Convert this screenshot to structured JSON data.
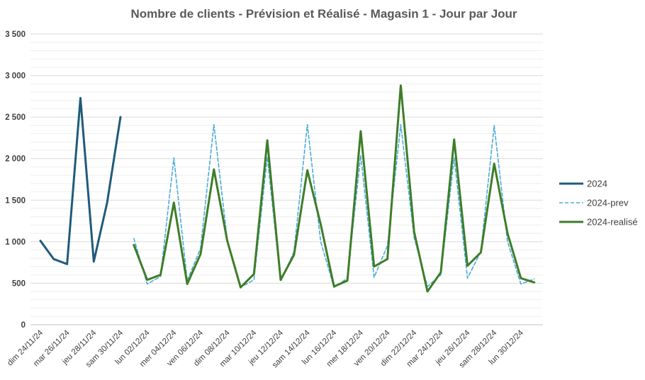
{
  "chart_data": {
    "type": "line",
    "title": "Nombre de clients - Prévision et Réalisé - Magasin 1 - Jour par Jour",
    "xlabel": "",
    "ylabel": "",
    "ylim": [
      0,
      3500
    ],
    "yticks": [
      0,
      500,
      1000,
      1500,
      2000,
      2500,
      3000,
      3500
    ],
    "ytick_labels": [
      "0",
      "500",
      "1 000",
      "1 500",
      "2 000",
      "2 500",
      "3 000",
      "3 500"
    ],
    "grid": true,
    "legend_position": "right",
    "categories": [
      "dim 24/11/24",
      "lun 25/11/24",
      "mar 26/11/24",
      "mer 27/11/24",
      "jeu 28/11/24",
      "ven 29/11/24",
      "sam 30/11/24",
      "dim 01/12/24",
      "lun 02/12/24",
      "mar 03/12/24",
      "mer 04/12/24",
      "jeu 05/12/24",
      "ven 06/12/24",
      "sam 07/12/24",
      "dim 08/12/24",
      "lun 09/12/24",
      "mar 10/12/24",
      "mer 11/12/24",
      "jeu 12/12/24",
      "ven 13/12/24",
      "sam 14/12/24",
      "dim 15/12/24",
      "lun 16/12/24",
      "mar 17/12/24",
      "mer 18/12/24",
      "jeu 19/12/24",
      "ven 20/12/24",
      "sam 21/12/24",
      "dim 22/12/24",
      "lun 23/12/24",
      "mar 24/12/24",
      "mer 25/12/24",
      "jeu 26/12/24",
      "ven 27/12/24",
      "sam 28/12/24",
      "dim 29/12/24",
      "lun 30/12/24",
      "mar 31/12/24"
    ],
    "tick_labels": [
      "dim 24/11/24",
      "mar 26/11/24",
      "jeu 28/11/24",
      "sam 30/11/24",
      "lun 02/12/24",
      "mer 04/12/24",
      "ven 06/12/24",
      "dim 08/12/24",
      "mar 10/12/24",
      "jeu 12/12/24",
      "sam 14/12/24",
      "lun 16/12/24",
      "mer 18/12/24",
      "ven 20/12/24",
      "dim 22/12/24",
      "mar 24/12/24",
      "jeu 26/12/24",
      "sam 28/12/24",
      "lun 30/12/24"
    ],
    "series": [
      {
        "name": "2024",
        "color": "#1f5b7a",
        "dash": "solid",
        "values": [
          1010,
          790,
          730,
          2730,
          760,
          1470,
          2500,
          null,
          null,
          null,
          null,
          null,
          null,
          null,
          null,
          null,
          null,
          null,
          null,
          null,
          null,
          null,
          null,
          null,
          null,
          null,
          null,
          null,
          null,
          null,
          null,
          null,
          null,
          null,
          null,
          null,
          null,
          null
        ]
      },
      {
        "name": "2024-prev",
        "color": "#4bacd6",
        "dash": "dashed",
        "values": [
          null,
          null,
          null,
          null,
          null,
          null,
          null,
          1040,
          490,
          580,
          2010,
          530,
          920,
          2410,
          1020,
          450,
          540,
          2020,
          520,
          880,
          2410,
          1000,
          450,
          560,
          2040,
          570,
          950,
          2410,
          1050,
          460,
          600,
          2010,
          560,
          880,
          2400,
          1000,
          490,
          550
        ]
      },
      {
        "name": "2024-realisé",
        "color": "#3e7d28",
        "dash": "solid",
        "values": [
          null,
          null,
          null,
          null,
          null,
          null,
          null,
          960,
          540,
          600,
          1470,
          490,
          850,
          1870,
          1010,
          450,
          610,
          2220,
          540,
          840,
          1860,
          1210,
          460,
          530,
          2330,
          700,
          790,
          2880,
          1120,
          400,
          630,
          2230,
          710,
          870,
          1940,
          1100,
          560,
          510
        ]
      }
    ]
  }
}
